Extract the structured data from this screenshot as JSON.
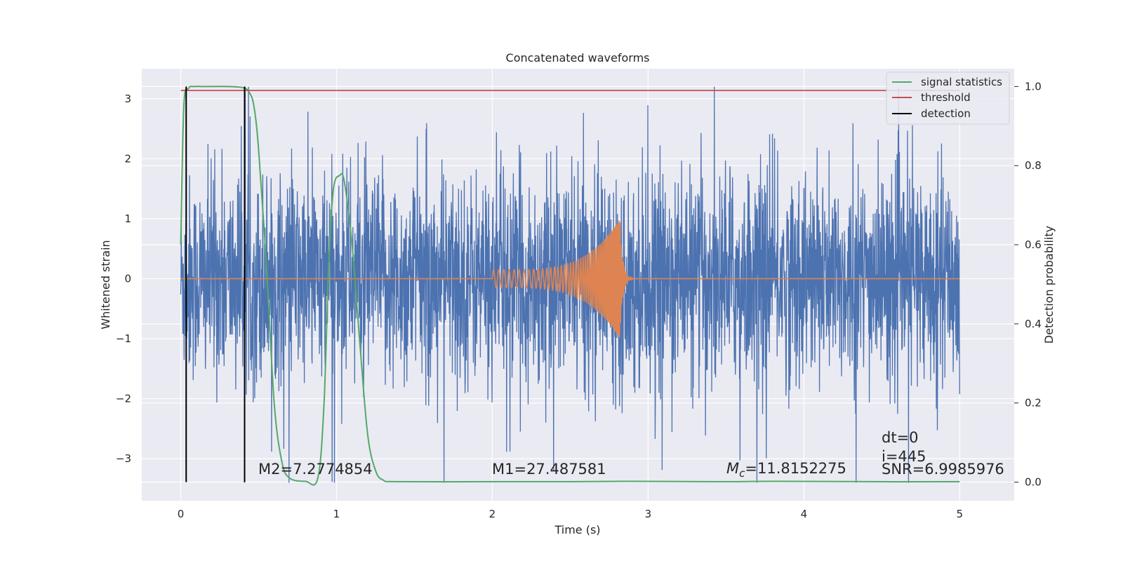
{
  "chart_data": {
    "type": "line",
    "title": "Concatenated waveforms",
    "xlabel": "Time (s)",
    "ylabel": "Whitened strain",
    "y2label": "Detection probability",
    "xlim": [
      -0.25,
      5.35
    ],
    "ylim": [
      -3.7,
      3.5
    ],
    "y2lim": [
      -0.047,
      1.045
    ],
    "xticks": [
      "0",
      "1",
      "2",
      "3",
      "4",
      "5"
    ],
    "yticks": [
      "3",
      "2",
      "1",
      "0",
      "−1",
      "−2",
      "−3"
    ],
    "y2ticks": [
      "1.0",
      "0.8",
      "0.6",
      "0.4",
      "0.2",
      "0.0"
    ],
    "grid": true,
    "legend": {
      "position": "top-right",
      "entries": [
        {
          "label": "signal statistics",
          "color": "#55a868"
        },
        {
          "label": "threshold",
          "color": "#c44e52"
        },
        {
          "label": "detection",
          "color": "#000000"
        }
      ]
    },
    "series": [
      {
        "role": "noisy-strain",
        "color": "#4c72b0",
        "duration": 5.0,
        "amplitude_range": [
          -3.4,
          3.2
        ]
      },
      {
        "role": "injected-chirp",
        "color": "#dd8452",
        "start": 2.0,
        "merger": 2.82,
        "start_amplitude": 0.15,
        "peak_amplitude": 1.0
      },
      {
        "name": "signal statistics",
        "color": "#55a868",
        "axis": "right",
        "x": [
          0.0,
          0.02,
          0.05,
          0.08,
          0.15,
          0.3,
          0.4,
          0.44,
          0.47,
          0.5,
          0.55,
          0.6,
          0.65,
          0.7,
          0.8,
          0.88,
          0.92,
          0.95,
          0.98,
          1.02,
          1.05,
          1.1,
          1.15,
          1.2,
          1.25,
          1.3,
          1.4,
          2.0,
          2.5,
          2.9,
          3.5,
          3.8,
          4.5,
          5.0
        ],
        "y": [
          0.6,
          0.95,
          0.995,
          1.0,
          1.0,
          1.0,
          0.997,
          0.985,
          0.95,
          0.84,
          0.55,
          0.2,
          0.05,
          0.01,
          0.002,
          0.01,
          0.2,
          0.55,
          0.74,
          0.775,
          0.76,
          0.6,
          0.35,
          0.12,
          0.03,
          0.005,
          0.001,
          0.001,
          0.001,
          0.002,
          0.001,
          0.002,
          0.001,
          0.001
        ]
      },
      {
        "name": "threshold",
        "color": "#c44e52",
        "axis": "right",
        "x": [
          0.0,
          5.0
        ],
        "y": [
          0.99,
          0.99
        ]
      },
      {
        "name": "detection",
        "color": "#000000",
        "axis": "right",
        "x": [
          0.035,
          0.41
        ],
        "y_range": [
          0.0,
          1.0
        ]
      }
    ],
    "annotations": {
      "m2": "M2=7.2774854",
      "m1": "M1=27.487581",
      "mc_symbol": "M",
      "mc_sub": "c",
      "mc_value": "=11.8152275",
      "dt": "dt=0",
      "i": "i=445",
      "snr": "SNR=6.9985976"
    }
  }
}
